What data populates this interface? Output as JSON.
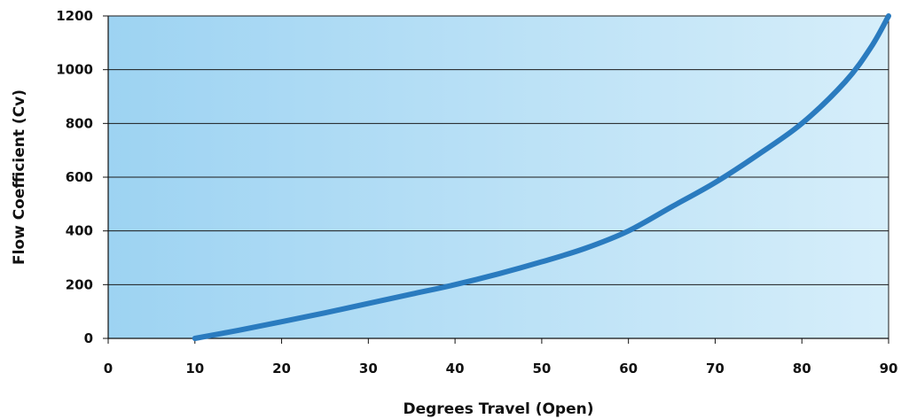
{
  "chart_data": {
    "type": "line",
    "title": "",
    "xlabel": "Degrees Travel (Open)",
    "ylabel": "Flow Coefficient (Cv)",
    "xlim": [
      0,
      90
    ],
    "ylim": [
      0,
      1200
    ],
    "x_ticks": [
      "0",
      "10",
      "20",
      "30",
      "40",
      "50",
      "60",
      "70",
      "80",
      "90"
    ],
    "y_ticks": [
      "0",
      "200",
      "400",
      "600",
      "800",
      "1000",
      "1200"
    ],
    "grid": "horizontal",
    "legend": "none",
    "series": [
      {
        "x": [
          10,
          15,
          20,
          25,
          30,
          35,
          40,
          45,
          50,
          55,
          60,
          65,
          70,
          75,
          80,
          85,
          88,
          90
        ],
        "y": [
          0,
          30,
          62,
          95,
          130,
          165,
          200,
          240,
          285,
          335,
          400,
          490,
          580,
          685,
          800,
          955,
          1085,
          1200
        ]
      }
    ],
    "colors": {
      "line": "#2a7bbf",
      "background_left": "#9dd3f2",
      "background_right": "#d6eefa",
      "grid": "#1a1a1a",
      "axis": "#111111"
    }
  }
}
